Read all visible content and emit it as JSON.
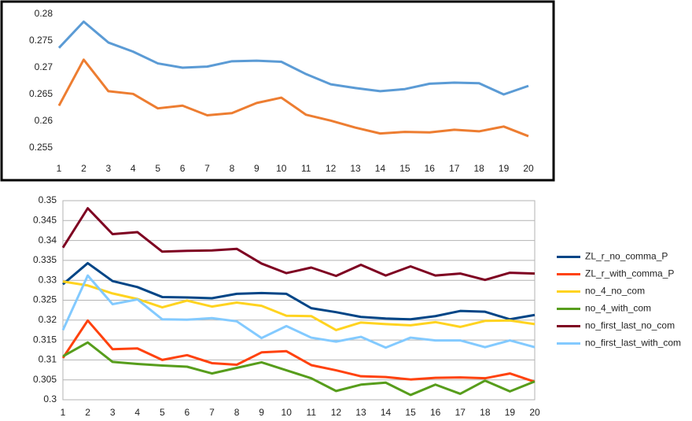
{
  "chart_data": [
    {
      "type": "line",
      "x": [
        1,
        2,
        3,
        4,
        5,
        6,
        7,
        8,
        9,
        10,
        11,
        12,
        13,
        14,
        15,
        16,
        17,
        18,
        19,
        20
      ],
      "xlim": [
        1,
        20
      ],
      "ylim": [
        0.255,
        0.28
      ],
      "yticks": [
        0.255,
        0.26,
        0.265,
        0.27,
        0.275,
        0.28
      ],
      "grid": false,
      "series": [
        {
          "color": "#5b9bd5",
          "values": [
            0.2737,
            0.2786,
            0.2747,
            0.273,
            0.2708,
            0.27,
            0.2702,
            0.2712,
            0.2713,
            0.2711,
            0.2688,
            0.2669,
            0.2662,
            0.2656,
            0.266,
            0.267,
            0.2672,
            0.2671,
            0.265,
            0.2666
          ]
        },
        {
          "color": "#ed7d31",
          "values": [
            0.2629,
            0.2715,
            0.2656,
            0.2651,
            0.2624,
            0.2629,
            0.2611,
            0.2615,
            0.2634,
            0.2644,
            0.2612,
            0.2601,
            0.2588,
            0.2577,
            0.258,
            0.2579,
            0.2584,
            0.2581,
            0.259,
            0.2572
          ]
        }
      ]
    },
    {
      "type": "line",
      "x": [
        1,
        2,
        3,
        4,
        5,
        6,
        7,
        8,
        9,
        10,
        11,
        12,
        13,
        14,
        15,
        16,
        17,
        18,
        19,
        20
      ],
      "xlim": [
        1,
        20
      ],
      "ylim": [
        0.3,
        0.35
      ],
      "yticks": [
        0.3,
        0.305,
        0.31,
        0.315,
        0.32,
        0.325,
        0.33,
        0.335,
        0.34,
        0.345,
        0.35
      ],
      "grid": true,
      "legend": "right",
      "series": [
        {
          "name": "ZL_r_no_comma_P",
          "color": "#004586",
          "values": [
            0.329,
            0.3343,
            0.3298,
            0.3283,
            0.3258,
            0.3257,
            0.3255,
            0.3266,
            0.3268,
            0.3266,
            0.323,
            0.322,
            0.3208,
            0.3204,
            0.3202,
            0.321,
            0.3223,
            0.3221,
            0.3202,
            0.3213
          ]
        },
        {
          "name": "ZL_r_with_comma_P",
          "color": "#ff420e",
          "values": [
            0.3105,
            0.3199,
            0.3127,
            0.3129,
            0.31,
            0.3112,
            0.3092,
            0.3088,
            0.3119,
            0.3122,
            0.3087,
            0.3074,
            0.3059,
            0.3057,
            0.3051,
            0.3055,
            0.3056,
            0.3054,
            0.3066,
            0.3045
          ]
        },
        {
          "name": "no_4_no_com",
          "color": "#ffd320",
          "values": [
            0.3297,
            0.3287,
            0.3267,
            0.3253,
            0.3232,
            0.3249,
            0.3234,
            0.3244,
            0.3236,
            0.3211,
            0.321,
            0.3175,
            0.3194,
            0.319,
            0.3187,
            0.3195,
            0.3183,
            0.3198,
            0.3199,
            0.319
          ]
        },
        {
          "name": "no_4_with_com",
          "color": "#579d1c",
          "values": [
            0.3109,
            0.3144,
            0.3095,
            0.309,
            0.3086,
            0.3083,
            0.3066,
            0.308,
            0.3094,
            0.3074,
            0.3054,
            0.3022,
            0.3038,
            0.3043,
            0.3012,
            0.3038,
            0.3015,
            0.3048,
            0.3021,
            0.3046
          ]
        },
        {
          "name": "no_first_last_no_com",
          "color": "#7e0021",
          "values": [
            0.3382,
            0.3481,
            0.3416,
            0.3421,
            0.3372,
            0.3374,
            0.3375,
            0.3379,
            0.3342,
            0.3318,
            0.3332,
            0.3311,
            0.3339,
            0.3312,
            0.3335,
            0.3312,
            0.3317,
            0.3301,
            0.3319,
            0.3317
          ]
        },
        {
          "name": "no_first_last_with_com",
          "color": "#83caff",
          "values": [
            0.3175,
            0.3312,
            0.324,
            0.3252,
            0.3202,
            0.3201,
            0.3205,
            0.3197,
            0.3155,
            0.3185,
            0.3156,
            0.3146,
            0.3158,
            0.3131,
            0.3156,
            0.3149,
            0.3149,
            0.3132,
            0.3149,
            0.3132
          ]
        }
      ]
    }
  ]
}
